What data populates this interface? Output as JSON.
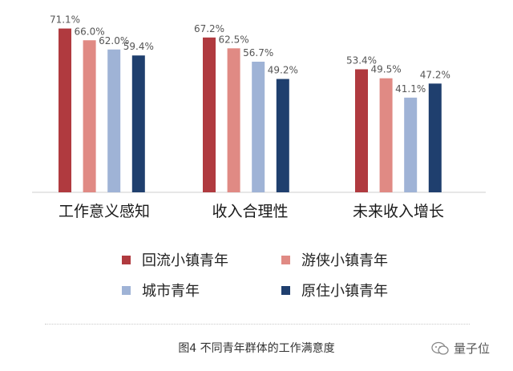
{
  "chart_data": {
    "type": "bar",
    "categories": [
      "工作意义感知",
      "收入合理性",
      "未来收入增长"
    ],
    "series": [
      {
        "name": "回流小镇青年",
        "values": [
          71.1,
          67.2,
          53.4
        ],
        "labels": [
          "71.1%",
          "67.2%",
          "53.4%"
        ],
        "color": "#b03a3f"
      },
      {
        "name": "游侠小镇青年",
        "values": [
          66.0,
          62.5,
          49.5
        ],
        "labels": [
          "66.0%",
          "62.5%",
          "49.5%"
        ],
        "color": "#e08a84"
      },
      {
        "name": "城市青年",
        "values": [
          62.0,
          56.7,
          41.1
        ],
        "labels": [
          "62.0%",
          "56.7%",
          "41.1%"
        ],
        "color": "#9fb3d6"
      },
      {
        "name": "原住小镇青年",
        "values": [
          59.4,
          49.2,
          47.2
        ],
        "labels": [
          "59.4%",
          "49.2%",
          "47.2%"
        ],
        "color": "#1f3f6e"
      }
    ],
    "ylim": [
      0,
      80
    ],
    "grid": false,
    "legend_position": "bottom"
  },
  "caption": "图4 不同青年群体的工作满意度",
  "watermark": "量子位"
}
